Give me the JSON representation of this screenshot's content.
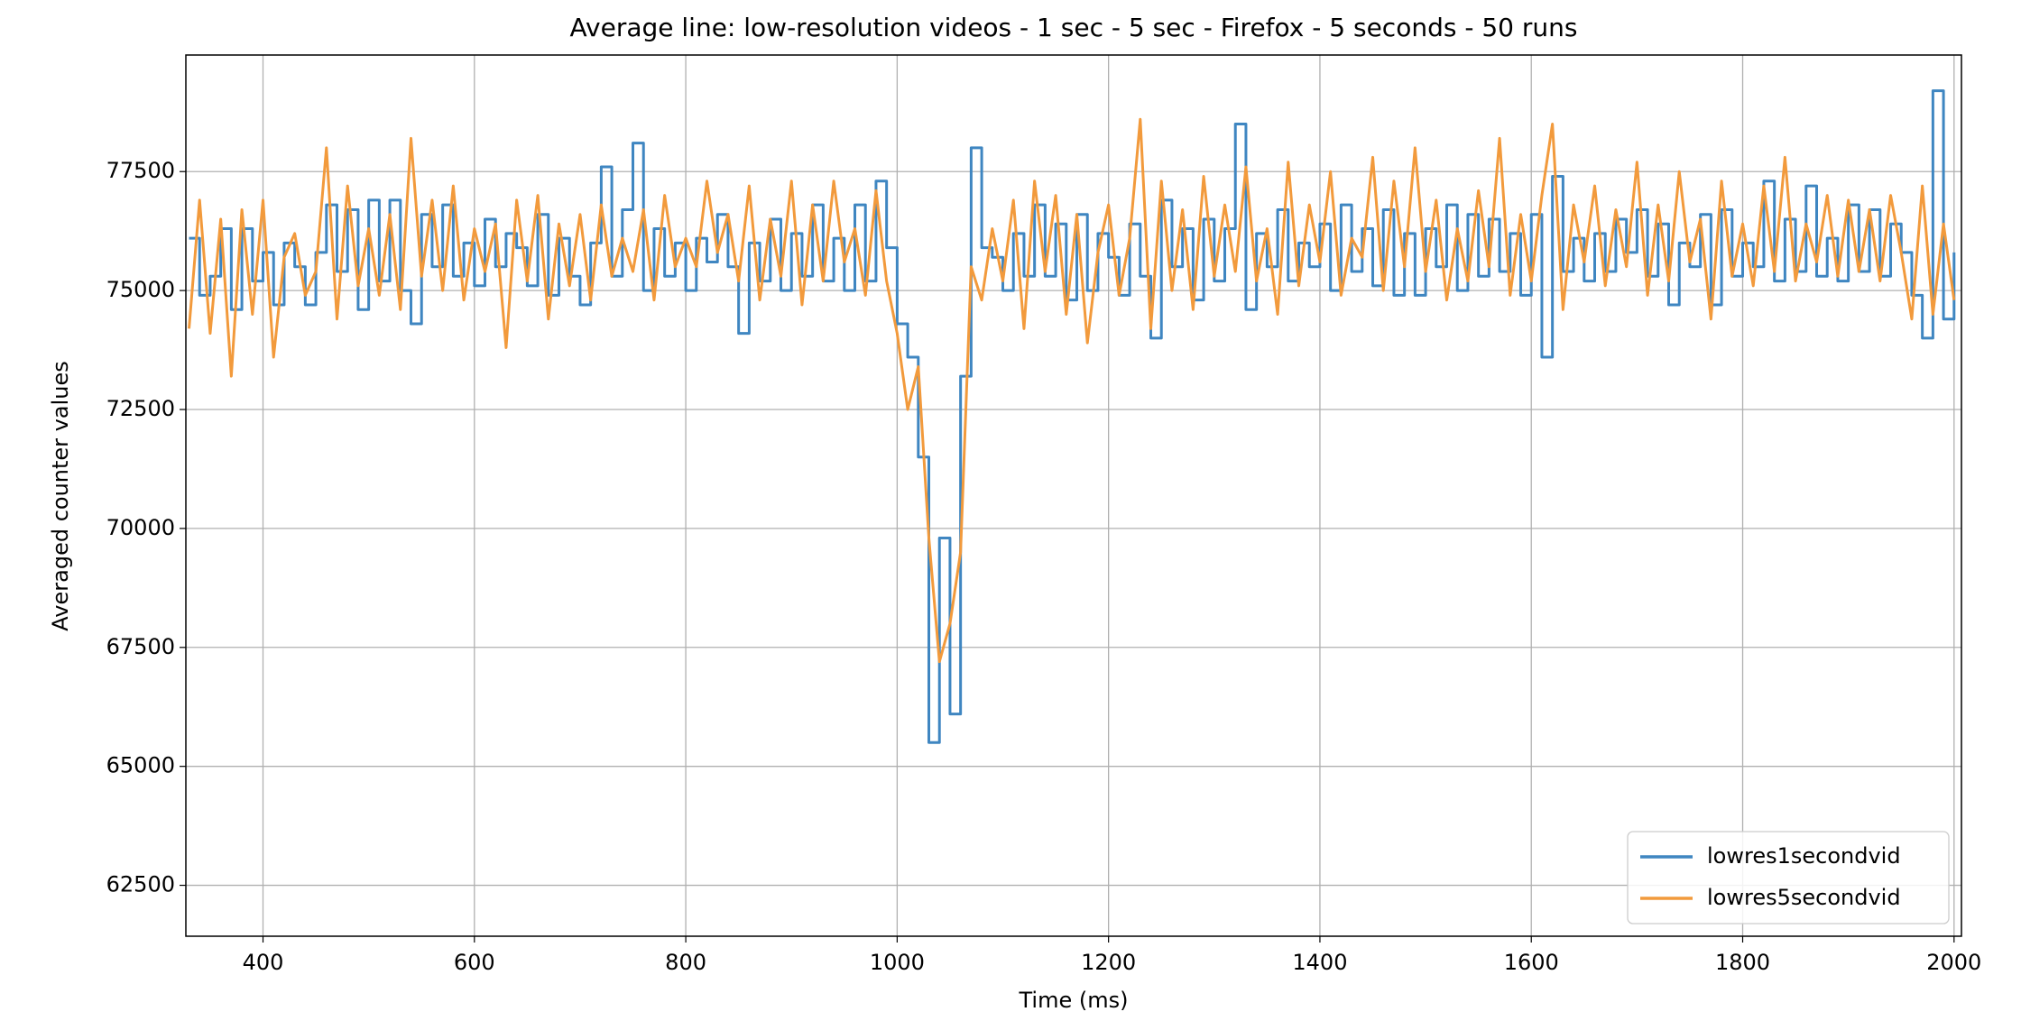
{
  "chart_data": {
    "type": "line",
    "title": "Average line: low-resolution videos - 1 sec - 5 sec  - Firefox - 5 seconds - 50 runs",
    "xlabel": "Time (ms)",
    "ylabel": "Averaged counter values",
    "xlim": [
      327,
      2007
    ],
    "ylim": [
      61430,
      79950
    ],
    "xticks": [
      400,
      600,
      800,
      1000,
      1200,
      1400,
      1600,
      1800,
      2000
    ],
    "yticks": [
      62500,
      65000,
      67500,
      70000,
      72500,
      75000,
      77500
    ],
    "grid": true,
    "legend": "lower right",
    "x": [
      330,
      340,
      350,
      360,
      370,
      380,
      390,
      400,
      410,
      420,
      430,
      440,
      450,
      460,
      470,
      480,
      490,
      500,
      510,
      520,
      530,
      540,
      550,
      560,
      570,
      580,
      590,
      600,
      610,
      620,
      630,
      640,
      650,
      660,
      670,
      680,
      690,
      700,
      710,
      720,
      730,
      740,
      750,
      760,
      770,
      780,
      790,
      800,
      810,
      820,
      830,
      840,
      850,
      860,
      870,
      880,
      890,
      900,
      910,
      920,
      930,
      940,
      950,
      960,
      970,
      980,
      990,
      1000,
      1010,
      1020,
      1030,
      1040,
      1050,
      1060,
      1070,
      1080,
      1090,
      1100,
      1110,
      1120,
      1130,
      1140,
      1150,
      1160,
      1170,
      1180,
      1190,
      1200,
      1210,
      1220,
      1230,
      1240,
      1250,
      1260,
      1270,
      1280,
      1290,
      1300,
      1310,
      1320,
      1330,
      1340,
      1350,
      1360,
      1370,
      1380,
      1390,
      1400,
      1410,
      1420,
      1430,
      1440,
      1450,
      1460,
      1470,
      1480,
      1490,
      1500,
      1510,
      1520,
      1530,
      1540,
      1550,
      1560,
      1570,
      1580,
      1590,
      1600,
      1610,
      1620,
      1630,
      1640,
      1650,
      1660,
      1670,
      1680,
      1690,
      1700,
      1710,
      1720,
      1730,
      1740,
      1750,
      1760,
      1770,
      1780,
      1790,
      1800,
      1810,
      1820,
      1830,
      1840,
      1850,
      1860,
      1870,
      1880,
      1890,
      1900,
      1910,
      1920,
      1930,
      1940,
      1950,
      1960,
      1970,
      1980,
      1990,
      2000
    ],
    "series": [
      {
        "name": "lowres1secondvid",
        "color": "#3f86c1",
        "step": true,
        "values": [
          76100,
          74900,
          75300,
          76300,
          74600,
          76300,
          75200,
          75800,
          74700,
          76000,
          75500,
          74700,
          75800,
          76800,
          75400,
          76700,
          74600,
          76900,
          75200,
          76900,
          75000,
          74300,
          76600,
          75500,
          76800,
          75300,
          76000,
          75100,
          76500,
          75500,
          76200,
          75900,
          75100,
          76600,
          74900,
          76100,
          75300,
          74700,
          76000,
          77600,
          75300,
          76700,
          78100,
          75000,
          76300,
          75300,
          76000,
          75000,
          76100,
          75600,
          76600,
          75500,
          74100,
          76000,
          75200,
          76500,
          75000,
          76200,
          75300,
          76800,
          75200,
          76100,
          75000,
          76800,
          75200,
          77300,
          75900,
          74300,
          73600,
          71500,
          65500,
          69800,
          66100,
          73200,
          78000,
          75900,
          75700,
          75000,
          76200,
          75300,
          76800,
          75300,
          76400,
          74800,
          76600,
          75000,
          76200,
          75700,
          74900,
          76400,
          75300,
          74000,
          76900,
          75500,
          76300,
          74800,
          76500,
          75200,
          76300,
          78500,
          74600,
          76200,
          75500,
          76700,
          75200,
          76000,
          75500,
          76400,
          75000,
          76800,
          75400,
          76300,
          75100,
          76700,
          74900,
          76200,
          74900,
          76300,
          75500,
          76800,
          75000,
          76600,
          75300,
          76500,
          75400,
          76200,
          74900,
          76600,
          73600,
          77400,
          75400,
          76100,
          75200,
          76200,
          75400,
          76500,
          75800,
          76700,
          75300,
          76400,
          74700,
          76000,
          75500,
          76600,
          74700,
          76700,
          75300,
          76000,
          75500,
          77300,
          75200,
          76500,
          75400,
          77200,
          75300,
          76100,
          75200,
          76800,
          75400,
          76700,
          75300,
          76400,
          75800,
          74900,
          74000,
          79200,
          74400,
          75800
        ]
      },
      {
        "name": "lowres5secondvid",
        "color": "#f29a3c",
        "step": false,
        "values": [
          74200,
          76900,
          74100,
          76500,
          73200,
          76700,
          74500,
          76900,
          73600,
          75700,
          76200,
          74900,
          75400,
          78000,
          74400,
          77200,
          75100,
          76300,
          74900,
          76600,
          74600,
          78200,
          75300,
          76900,
          75000,
          77200,
          74800,
          76300,
          75400,
          76400,
          73800,
          76900,
          75200,
          77000,
          74400,
          76400,
          75100,
          76600,
          74800,
          76800,
          75300,
          76100,
          75400,
          76700,
          74800,
          77000,
          75500,
          76100,
          75500,
          77300,
          75800,
          76600,
          75200,
          77200,
          74800,
          76500,
          75300,
          77300,
          74700,
          76800,
          75200,
          77300,
          75600,
          76300,
          74900,
          77100,
          75200,
          74100,
          72500,
          73400,
          69800,
          67200,
          68000,
          69500,
          75500,
          74800,
          76300,
          75200,
          76900,
          74200,
          77300,
          75400,
          77000,
          74500,
          76600,
          73900,
          75800,
          76800,
          74900,
          76100,
          78600,
          74200,
          77300,
          75000,
          76700,
          74600,
          77400,
          75300,
          76800,
          75400,
          77600,
          75200,
          76300,
          74500,
          77700,
          75100,
          76800,
          75600,
          77500,
          74900,
          76100,
          75700,
          77800,
          75000,
          77300,
          75500,
          78000,
          75400,
          76900,
          74800,
          76300,
          75200,
          77100,
          75500,
          78200,
          74900,
          76600,
          75200,
          77000,
          78500,
          74600,
          76800,
          75600,
          77200,
          75100,
          76700,
          75500,
          77700,
          74900,
          76800,
          75200,
          77500,
          75600,
          76500,
          74400,
          77300,
          75300,
          76400,
          75100,
          77200,
          75400,
          77800,
          75200,
          76400,
          75600,
          77000,
          75300,
          76900,
          75400,
          76700,
          75200,
          77000,
          75800,
          74400,
          77200,
          74500,
          76400,
          74800
        ]
      }
    ]
  }
}
